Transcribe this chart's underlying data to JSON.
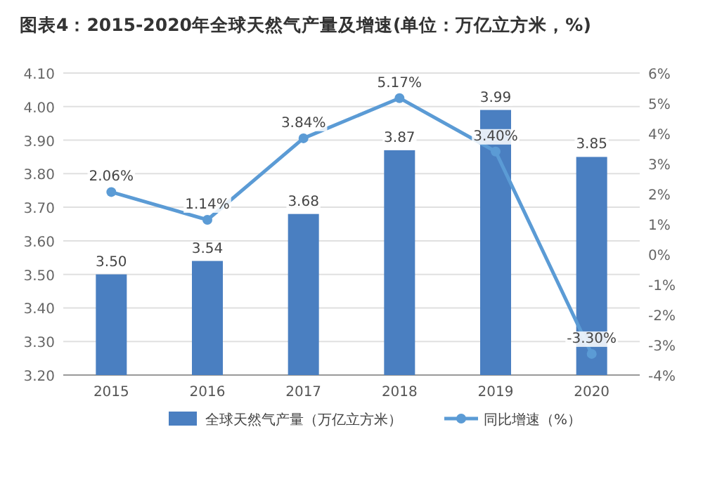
{
  "chart_data": {
    "type": "bar",
    "title": "图表4：2015-2020年全球天然气产量及增速(单位：万亿立方米，%)",
    "categories": [
      "2015",
      "2016",
      "2017",
      "2018",
      "2019",
      "2020"
    ],
    "series": [
      {
        "name": "全球天然气产量（万亿立方米）",
        "type": "bar",
        "color": "#4a7fc1",
        "values": [
          3.5,
          3.54,
          3.68,
          3.87,
          3.99,
          3.85
        ],
        "value_labels": [
          "3.50",
          "3.54",
          "3.68",
          "3.87",
          "3.99",
          "3.85"
        ]
      },
      {
        "name": "同比增速（%）",
        "type": "line",
        "axis": "y2",
        "color": "#5b9bd5",
        "marker": "circle",
        "values": [
          2.06,
          1.14,
          3.84,
          5.17,
          3.4,
          -3.3
        ],
        "value_labels": [
          "2.06%",
          "1.14%",
          "3.84%",
          "5.17%",
          "3.40%",
          "-3.30%"
        ]
      }
    ],
    "ylim": [
      3.2,
      4.1
    ],
    "yticks": [
      {
        "value": 3.2,
        "label": "3.20"
      },
      {
        "value": 3.3,
        "label": "3.30"
      },
      {
        "value": 3.4,
        "label": "3.40"
      },
      {
        "value": 3.5,
        "label": "3.50"
      },
      {
        "value": 3.6,
        "label": "3.60"
      },
      {
        "value": 3.7,
        "label": "3.70"
      },
      {
        "value": 3.8,
        "label": "3.80"
      },
      {
        "value": 3.9,
        "label": "3.90"
      },
      {
        "value": 4.0,
        "label": "4.00"
      },
      {
        "value": 4.1,
        "label": "4.10"
      }
    ],
    "y2lim": [
      -4,
      6
    ],
    "y2ticks": [
      {
        "value": -4,
        "label": "-4%"
      },
      {
        "value": -3,
        "label": "-3%"
      },
      {
        "value": -2,
        "label": "-2%"
      },
      {
        "value": -1,
        "label": "-1%"
      },
      {
        "value": 0,
        "label": "0%"
      },
      {
        "value": 1,
        "label": "1%"
      },
      {
        "value": 2,
        "label": "2%"
      },
      {
        "value": 3,
        "label": "3%"
      },
      {
        "value": 4,
        "label": "4%"
      },
      {
        "value": 5,
        "label": "5%"
      },
      {
        "value": 6,
        "label": "6%"
      }
    ],
    "grid": "y",
    "legend": "bottom"
  }
}
